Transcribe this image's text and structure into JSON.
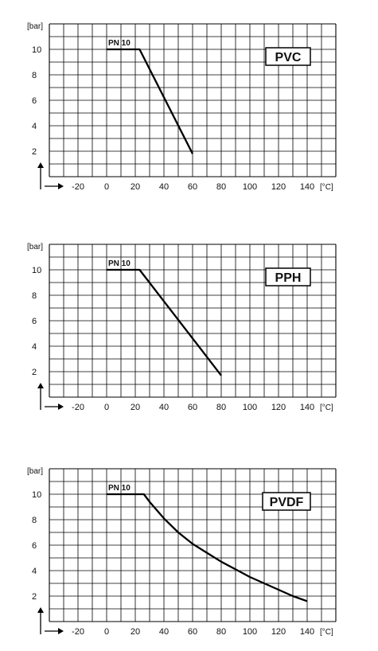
{
  "chart_data": [
    {
      "type": "line",
      "material_label": "PVC",
      "series_label": "PN 10",
      "y_unit": "[bar]",
      "x_unit": "[°C]",
      "x_ticks": [
        -20,
        0,
        20,
        40,
        60,
        80,
        100,
        120,
        140
      ],
      "y_ticks": [
        2,
        4,
        6,
        8,
        10
      ],
      "xlim": [
        -40,
        160
      ],
      "ylim": [
        0,
        12
      ],
      "grid": true,
      "series": [
        {
          "x": [
            0,
            23,
            60
          ],
          "y": [
            10,
            10,
            1.8
          ]
        }
      ]
    },
    {
      "type": "line",
      "material_label": "PPH",
      "series_label": "PN 10",
      "y_unit": "[bar]",
      "x_unit": "[°C]",
      "x_ticks": [
        -20,
        0,
        20,
        40,
        60,
        80,
        100,
        120,
        140
      ],
      "y_ticks": [
        2,
        4,
        6,
        8,
        10
      ],
      "xlim": [
        -40,
        160
      ],
      "ylim": [
        0,
        12
      ],
      "grid": true,
      "series": [
        {
          "x": [
            0,
            23,
            80
          ],
          "y": [
            10,
            10,
            1.7
          ]
        }
      ]
    },
    {
      "type": "line",
      "material_label": "PVDF",
      "series_label": "PN 10",
      "y_unit": "[bar]",
      "x_unit": "[°C]",
      "x_ticks": [
        -20,
        0,
        20,
        40,
        60,
        80,
        100,
        120,
        140
      ],
      "y_ticks": [
        2,
        4,
        6,
        8,
        10
      ],
      "xlim": [
        -40,
        160
      ],
      "ylim": [
        0,
        12
      ],
      "grid": true,
      "series": [
        {
          "x": [
            0,
            26,
            30,
            40,
            50,
            60,
            70,
            80,
            90,
            100,
            110,
            120,
            130,
            140
          ],
          "y": [
            10,
            10,
            9.4,
            8.1,
            7.0,
            6.1,
            5.4,
            4.7,
            4.1,
            3.5,
            3.0,
            2.5,
            2.0,
            1.6
          ]
        }
      ]
    }
  ]
}
